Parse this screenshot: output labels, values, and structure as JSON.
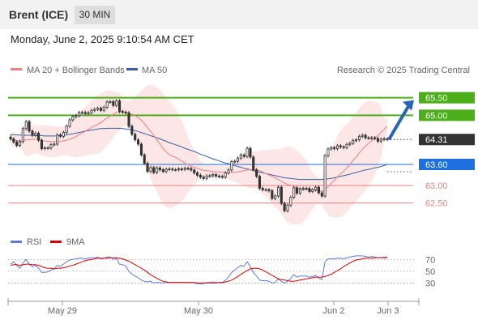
{
  "header": {
    "instrument": "Brent (ICE)",
    "timeframe": "30 MIN"
  },
  "timestamp": "Monday, June 2, 2025 9:10:54 AM CET",
  "legend": {
    "ma20": "MA 20 + Bollinger Bands",
    "ma50": "MA 50",
    "credit": "Research © 2025 Trading Central"
  },
  "colors": {
    "ma20": "#f08080",
    "ma50": "#3a5fa0",
    "resistance": "#4caf1a",
    "support": "#f08080",
    "pivot": "#1e6fe0",
    "price": "#333333",
    "candle": "#333333",
    "arrow": "#2a64b5",
    "band": "#fde6e6",
    "rsi": "#5b7be0",
    "rsi_ma": "#e00000"
  },
  "chart_data": [
    {
      "type": "candlestick",
      "x_ticks": [
        "May 29",
        "May 30",
        "Jun 2",
        "Jun 3"
      ],
      "ylim": [
        62.1,
        65.7
      ],
      "levels": [
        {
          "name": "resistance-2",
          "value": 65.5,
          "label": "65.50",
          "kind": "resistance"
        },
        {
          "name": "resistance-1",
          "value": 65.0,
          "label": "65.00",
          "kind": "resistance"
        },
        {
          "name": "last-price",
          "value": 64.31,
          "label": "64.31",
          "kind": "price"
        },
        {
          "name": "pivot",
          "value": 63.6,
          "label": "63.60",
          "kind": "pivot"
        },
        {
          "name": "support-1",
          "value": 63.0,
          "label": "63.00",
          "kind": "support"
        },
        {
          "name": "support-2",
          "value": 62.5,
          "label": "62.50",
          "kind": "support"
        }
      ],
      "close": [
        64.33,
        64.24,
        64.14,
        64.25,
        64.62,
        64.82,
        64.55,
        64.43,
        64.49,
        64.29,
        64.05,
        64.07,
        64.07,
        64.16,
        64.18,
        64.44,
        64.4,
        64.51,
        64.69,
        64.87,
        64.96,
        64.99,
        65.08,
        65.08,
        65.05,
        65.07,
        65.14,
        65.17,
        65.2,
        65.14,
        65.23,
        65.38,
        65.39,
        65.28,
        65.41,
        65.11,
        65.09,
        65.07,
        64.69,
        64.46,
        64.3,
        64.18,
        63.87,
        63.63,
        63.4,
        63.51,
        63.37,
        63.5,
        63.45,
        63.4,
        63.46,
        63.47,
        63.45,
        63.45,
        63.47,
        63.46,
        63.49,
        63.48,
        63.44,
        63.36,
        63.29,
        63.24,
        63.2,
        63.27,
        63.28,
        63.31,
        63.27,
        63.26,
        63.24,
        63.36,
        63.44,
        63.68,
        63.69,
        63.78,
        63.87,
        63.83,
        64.06,
        63.81,
        63.45,
        63.26,
        62.92,
        62.88,
        62.88,
        62.85,
        62.63,
        62.7,
        62.95,
        62.49,
        62.28,
        62.44,
        62.66,
        62.93,
        62.78,
        62.9,
        62.92,
        62.92,
        62.83,
        62.88,
        62.95,
        62.79,
        62.7,
        63.85,
        64.04,
        64.08,
        64.05,
        64.13,
        64.1,
        64.08,
        64.17,
        64.2,
        64.28,
        64.3,
        64.4,
        64.43,
        64.36,
        64.35,
        64.36,
        64.34,
        64.26,
        64.32,
        64.33,
        64.31
      ],
      "ma20": [
        64.3,
        64.3,
        64.28,
        64.27,
        64.28,
        64.3,
        64.31,
        64.31,
        64.32,
        64.31,
        64.29,
        64.27,
        64.26,
        64.25,
        64.25,
        64.25,
        64.26,
        64.27,
        64.29,
        64.32,
        64.35,
        64.39,
        64.45,
        64.5,
        64.54,
        64.6,
        64.65,
        64.7,
        64.74,
        64.79,
        64.86,
        64.92,
        64.97,
        65.03,
        65.08,
        65.09,
        65.09,
        65.08,
        65.05,
        65.03,
        64.99,
        64.94,
        64.86,
        64.76,
        64.65,
        64.54,
        64.43,
        64.3,
        64.18,
        64.05,
        63.96,
        63.88,
        63.83,
        63.8,
        63.75,
        63.7,
        63.64,
        63.59,
        63.55,
        63.52,
        63.49,
        63.46,
        63.43,
        63.42,
        63.41,
        63.4,
        63.39,
        63.39,
        63.38,
        63.37,
        63.37,
        63.37,
        63.38,
        63.39,
        63.41,
        63.42,
        63.44,
        63.45,
        63.45,
        63.44,
        63.42,
        63.38,
        63.34,
        63.3,
        63.26,
        63.21,
        63.17,
        63.12,
        63.07,
        63.03,
        63.0,
        62.97,
        62.94,
        62.91,
        62.89,
        62.88,
        62.86,
        62.86,
        62.86,
        62.85,
        62.83,
        62.88,
        62.96,
        63.06,
        63.15,
        63.25,
        63.33,
        63.41,
        63.5,
        63.6,
        63.71,
        63.81,
        63.93,
        64.03,
        64.12,
        64.2,
        64.27,
        64.35,
        64.43,
        64.51,
        64.6,
        64.68
      ],
      "ma50": [
        64.45,
        64.45,
        64.44,
        64.44,
        64.43,
        64.43,
        64.43,
        64.43,
        64.42,
        64.42,
        64.42,
        64.41,
        64.41,
        64.41,
        64.41,
        64.41,
        64.42,
        64.43,
        64.44,
        64.46,
        64.47,
        64.49,
        64.51,
        64.53,
        64.55,
        64.56,
        64.58,
        64.59,
        64.61,
        64.62,
        64.62,
        64.63,
        64.63,
        64.63,
        64.63,
        64.63,
        64.62,
        64.61,
        64.6,
        64.58,
        64.56,
        64.54,
        64.51,
        64.48,
        64.45,
        64.42,
        64.39,
        64.36,
        64.33,
        64.29,
        64.26,
        64.22,
        64.19,
        64.16,
        64.13,
        64.1,
        64.06,
        64.03,
        64.0,
        63.97,
        63.93,
        63.89,
        63.86,
        63.83,
        63.79,
        63.76,
        63.73,
        63.7,
        63.67,
        63.64,
        63.62,
        63.59,
        63.57,
        63.54,
        63.52,
        63.49,
        63.47,
        63.45,
        63.42,
        63.4,
        63.38,
        63.36,
        63.34,
        63.32,
        63.3,
        63.28,
        63.26,
        63.24,
        63.22,
        63.21,
        63.2,
        63.19,
        63.18,
        63.17,
        63.17,
        63.17,
        63.17,
        63.17,
        63.17,
        63.17,
        63.17,
        63.18,
        63.19,
        63.2,
        63.22,
        63.24,
        63.26,
        63.28,
        63.3,
        63.32,
        63.35,
        63.37,
        63.4,
        63.42,
        63.44,
        63.46,
        63.48,
        63.5,
        63.52,
        63.54,
        63.57,
        63.6
      ],
      "forecast_arrow": {
        "from": 64.31,
        "to": 65.5
      }
    },
    {
      "type": "line",
      "legend": [
        "RSI",
        "9MA"
      ],
      "y_ticks": [
        70,
        50,
        30
      ],
      "ylim": [
        10,
        80
      ],
      "series": [
        {
          "name": "RSI",
          "values": [
            62,
            66,
            60,
            55,
            64,
            70,
            62,
            58,
            60,
            55,
            48,
            48,
            49,
            52,
            54,
            60,
            58,
            62,
            66,
            69,
            70,
            71,
            72,
            72,
            71,
            72,
            73,
            73,
            74,
            71,
            72,
            74,
            74,
            70,
            72,
            62,
            61,
            59,
            50,
            45,
            42,
            39,
            35,
            33,
            32,
            33,
            30,
            31,
            31,
            30,
            31,
            31,
            31,
            31,
            31,
            31,
            31,
            31,
            31,
            30,
            29,
            29,
            29,
            31,
            31,
            32,
            31,
            31,
            30,
            35,
            40,
            48,
            52,
            56,
            60,
            58,
            66,
            58,
            48,
            42,
            35,
            34,
            34,
            33,
            30,
            31,
            37,
            33,
            30,
            33,
            38,
            44,
            40,
            42,
            42,
            42,
            40,
            41,
            43,
            38,
            36,
            66,
            71,
            71,
            71,
            72,
            72,
            71,
            73,
            74,
            75,
            76,
            76,
            76,
            75,
            74,
            75,
            74,
            73,
            73,
            74,
            74
          ]
        },
        {
          "name": "9MA",
          "values": [
            60,
            61,
            61,
            60,
            61,
            62,
            62,
            61,
            61,
            60,
            58,
            56,
            55,
            55,
            54,
            55,
            55,
            56,
            57,
            59,
            60,
            62,
            64,
            66,
            68,
            69,
            70,
            71,
            72,
            72,
            72,
            72,
            73,
            73,
            73,
            72,
            71,
            69,
            67,
            64,
            61,
            58,
            55,
            52,
            48,
            44,
            41,
            38,
            35,
            33,
            32,
            31,
            31,
            31,
            31,
            31,
            31,
            31,
            31,
            31,
            30,
            30,
            30,
            30,
            30,
            30,
            30,
            31,
            31,
            32,
            33,
            35,
            38,
            41,
            45,
            48,
            51,
            54,
            55,
            55,
            54,
            52,
            49,
            46,
            43,
            40,
            37,
            36,
            35,
            34,
            33,
            33,
            34,
            35,
            36,
            37,
            38,
            39,
            40,
            40,
            40,
            41,
            43,
            45,
            48,
            51,
            54,
            58,
            61,
            64,
            67,
            69,
            70,
            71,
            72,
            72,
            72,
            73,
            73,
            73,
            73,
            73
          ]
        }
      ]
    }
  ]
}
